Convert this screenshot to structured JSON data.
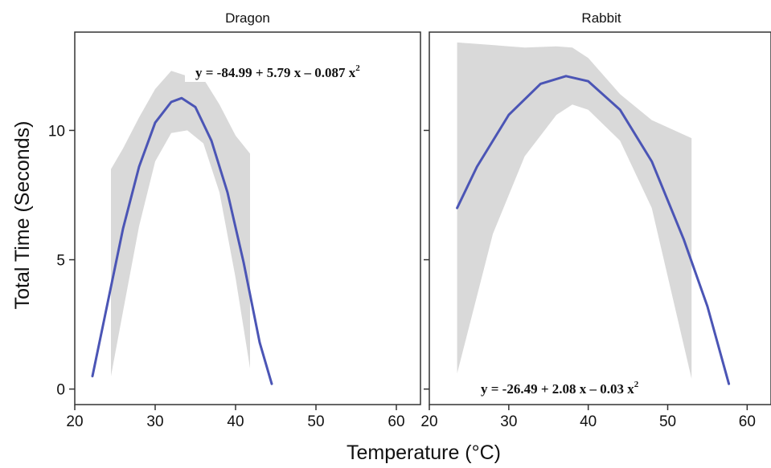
{
  "figure": {
    "ylabel": "Total Time (Seconds)",
    "xlabel": "Temperature (°C)"
  },
  "colors": {
    "fit_line": "#4b55b5",
    "confidence_band": "#d9d9d9",
    "frame": "#333333",
    "text": "#111111"
  },
  "chart_data": [
    {
      "type": "line",
      "title": "Dragon",
      "xlim": [
        20,
        63
      ],
      "ylim": [
        -0.6,
        13.8
      ],
      "xticks": [
        20,
        30,
        40,
        50,
        60
      ],
      "yticks": [
        0,
        5,
        10
      ],
      "xtick_labels": [
        "20",
        "30",
        "40",
        "50",
        "60"
      ],
      "ytick_labels": [
        "0",
        "5",
        "10"
      ],
      "equation": "y = -84.99 + 5.79 x – 0.087 x",
      "equation_power": "2",
      "series": [
        {
          "kind": "fit",
          "x": [
            22.2,
            24,
            26,
            28,
            30,
            32,
            33.3,
            35,
            37,
            39,
            41,
            43,
            44.5
          ],
          "y": [
            0.5,
            3.2,
            6.2,
            8.6,
            10.3,
            11.1,
            11.25,
            10.9,
            9.6,
            7.6,
            4.9,
            1.8,
            0.2
          ]
        },
        {
          "kind": "confidence_band",
          "x": [
            24.5,
            26,
            28,
            30,
            32,
            34,
            36,
            38,
            40,
            41.8
          ],
          "upper": [
            8.5,
            9.3,
            10.5,
            11.6,
            12.3,
            12.1,
            12.0,
            11.0,
            9.8,
            9.1
          ],
          "lower": [
            0.5,
            3.0,
            6.3,
            8.8,
            9.9,
            10.0,
            9.5,
            7.6,
            4.3,
            0.8
          ]
        }
      ]
    },
    {
      "type": "line",
      "title": "Rabbit",
      "xlim": [
        20,
        63
      ],
      "ylim": [
        -0.6,
        13.8
      ],
      "xticks": [
        20,
        30,
        40,
        50,
        60
      ],
      "yticks": [
        0,
        5,
        10
      ],
      "xtick_labels": [
        "20",
        "30",
        "40",
        "50",
        "60"
      ],
      "ytick_labels": [
        "0",
        "5",
        "10"
      ],
      "equation": "y = -26.49 + 2.08 x – 0.03 x",
      "equation_power": "2",
      "series": [
        {
          "kind": "fit",
          "x": [
            23.5,
            26,
            30,
            34,
            37.2,
            40,
            44,
            48,
            52,
            55,
            57.7
          ],
          "y": [
            7.0,
            8.6,
            10.6,
            11.8,
            12.1,
            11.9,
            10.8,
            8.8,
            5.8,
            3.2,
            0.2
          ]
        },
        {
          "kind": "confidence_band",
          "x": [
            23.5,
            28,
            32,
            36,
            38,
            40,
            44,
            48,
            53
          ],
          "upper": [
            13.4,
            13.3,
            13.2,
            13.25,
            13.2,
            12.8,
            11.4,
            10.4,
            9.7
          ],
          "lower": [
            0.6,
            6.0,
            9.0,
            10.6,
            11.0,
            10.8,
            9.6,
            7.0,
            0.4
          ]
        }
      ]
    }
  ]
}
